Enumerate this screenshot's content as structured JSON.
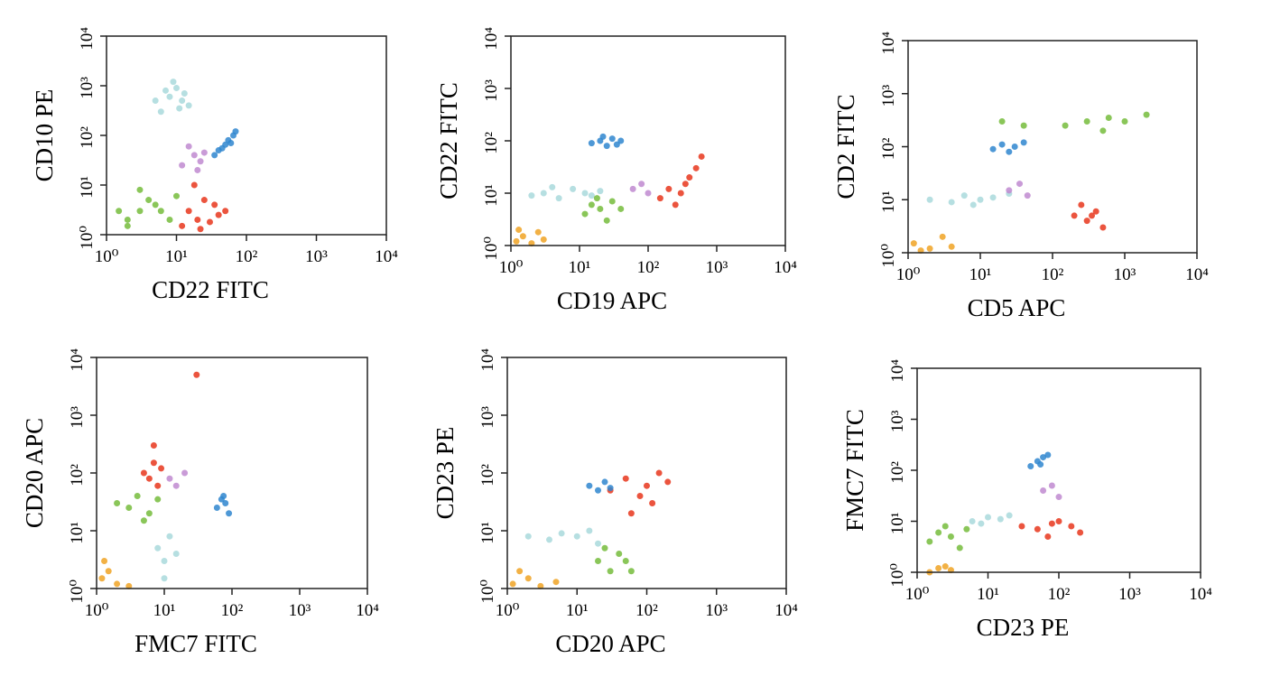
{
  "chart_data": [
    {
      "type": "scatter",
      "xlabel": "CD22 FITC",
      "ylabel": "CD10 PE",
      "log_x": true,
      "log_y": true,
      "xlim": [
        1,
        10000
      ],
      "ylim": [
        1,
        10000
      ],
      "xticks": [
        {
          "value": 1,
          "label": "10⁰"
        },
        {
          "value": 10,
          "label": "10¹"
        },
        {
          "value": 100,
          "label": "10²"
        },
        {
          "value": 1000,
          "label": "10³"
        },
        {
          "value": 10000,
          "label": "10⁴"
        }
      ],
      "yticks": [
        {
          "value": 1,
          "label": "10⁰"
        },
        {
          "value": 10,
          "label": "10¹"
        },
        {
          "value": 100,
          "label": "10²"
        },
        {
          "value": 1000,
          "label": "10³"
        },
        {
          "value": 10000,
          "label": "10⁴"
        }
      ],
      "series": [
        {
          "color": "#a9d9dc",
          "x": [
            6,
            8,
            10,
            12,
            15,
            9,
            7,
            11,
            5,
            13
          ],
          "values": [
            300,
            600,
            900,
            500,
            400,
            1200,
            800,
            350,
            500,
            700
          ]
        },
        {
          "color": "#2f86cf",
          "x": [
            35,
            45,
            55,
            65,
            40,
            50,
            70,
            60
          ],
          "values": [
            40,
            55,
            80,
            100,
            50,
            65,
            120,
            70
          ]
        },
        {
          "color": "#c08ad0",
          "x": [
            12,
            18,
            22,
            15,
            25,
            20
          ],
          "values": [
            25,
            40,
            30,
            60,
            45,
            20
          ]
        },
        {
          "color": "#76bc3c",
          "x": [
            2,
            3,
            4,
            6,
            8,
            3,
            5,
            2,
            10,
            1.5
          ],
          "values": [
            2,
            3,
            5,
            3,
            2,
            8,
            4,
            1.5,
            6,
            3
          ]
        },
        {
          "color": "#e8361c",
          "x": [
            12,
            15,
            20,
            25,
            30,
            40,
            18,
            50,
            22,
            35
          ],
          "values": [
            1.5,
            3,
            2,
            5,
            1.8,
            2.5,
            10,
            3,
            1.3,
            4
          ]
        }
      ]
    },
    {
      "type": "scatter",
      "xlabel": "CD19 APC",
      "ylabel": "CD22 FITC",
      "log_x": true,
      "log_y": true,
      "xlim": [
        1,
        10000
      ],
      "ylim": [
        1,
        10000
      ],
      "xticks": [
        {
          "value": 1,
          "label": "10⁰"
        },
        {
          "value": 10,
          "label": "10¹"
        },
        {
          "value": 100,
          "label": "10²"
        },
        {
          "value": 1000,
          "label": "10³"
        },
        {
          "value": 10000,
          "label": "10⁴"
        }
      ],
      "yticks": [
        {
          "value": 1,
          "label": "10⁰"
        },
        {
          "value": 10,
          "label": "10¹"
        },
        {
          "value": 100,
          "label": "10²"
        },
        {
          "value": 1000,
          "label": "10³"
        },
        {
          "value": 10000,
          "label": "10⁴"
        }
      ],
      "series": [
        {
          "color": "#f0a325",
          "x": [
            1.2,
            1.5,
            2,
            3,
            1.3,
            2.5
          ],
          "values": [
            1.2,
            1.5,
            1.1,
            1.3,
            2,
            1.8
          ]
        },
        {
          "color": "#a9d9dc",
          "x": [
            2,
            3,
            5,
            8,
            12,
            20,
            4,
            15
          ],
          "values": [
            9,
            10,
            8,
            12,
            10,
            11,
            13,
            9
          ]
        },
        {
          "color": "#2f86cf",
          "x": [
            15,
            20,
            25,
            30,
            40,
            22,
            35
          ],
          "values": [
            90,
            100,
            80,
            110,
            100,
            120,
            85
          ]
        },
        {
          "color": "#76bc3c",
          "x": [
            12,
            15,
            20,
            25,
            30,
            18,
            40
          ],
          "values": [
            4,
            6,
            5,
            3,
            7,
            8,
            5
          ]
        },
        {
          "color": "#c08ad0",
          "x": [
            60,
            80,
            100
          ],
          "values": [
            12,
            15,
            10
          ]
        },
        {
          "color": "#e8361c",
          "x": [
            150,
            200,
            300,
            400,
            500,
            250,
            350,
            600
          ],
          "values": [
            8,
            12,
            10,
            20,
            30,
            6,
            15,
            50
          ]
        }
      ]
    },
    {
      "type": "scatter",
      "xlabel": "CD5 APC",
      "ylabel": "CD2 FITC",
      "log_x": true,
      "log_y": true,
      "xlim": [
        1,
        10000
      ],
      "ylim": [
        1,
        10000
      ],
      "xticks": [
        {
          "value": 1,
          "label": "10⁰"
        },
        {
          "value": 10,
          "label": "10¹"
        },
        {
          "value": 100,
          "label": "10²"
        },
        {
          "value": 1000,
          "label": "10³"
        },
        {
          "value": 10000,
          "label": "10⁴"
        }
      ],
      "yticks": [
        {
          "value": 1,
          "label": "10⁰"
        },
        {
          "value": 10,
          "label": "10¹"
        },
        {
          "value": 100,
          "label": "10²"
        },
        {
          "value": 1000,
          "label": "10³"
        },
        {
          "value": 10000,
          "label": "10⁴"
        }
      ],
      "series": [
        {
          "color": "#f0a325",
          "x": [
            1.2,
            2,
            3,
            1.5,
            4
          ],
          "values": [
            1.5,
            1.2,
            2,
            1.1,
            1.3
          ]
        },
        {
          "color": "#a9d9dc",
          "x": [
            2,
            4,
            6,
            10,
            15,
            25,
            8
          ],
          "values": [
            10,
            9,
            12,
            10,
            11,
            13,
            8
          ]
        },
        {
          "color": "#2f86cf",
          "x": [
            15,
            20,
            30,
            40,
            25
          ],
          "values": [
            90,
            110,
            100,
            120,
            80
          ]
        },
        {
          "color": "#c08ad0",
          "x": [
            25,
            35,
            45
          ],
          "values": [
            15,
            20,
            12
          ]
        },
        {
          "color": "#76bc3c",
          "x": [
            20,
            40,
            150,
            300,
            600,
            1000,
            2000,
            500
          ],
          "values": [
            300,
            250,
            250,
            300,
            350,
            300,
            400,
            200
          ]
        },
        {
          "color": "#e8361c",
          "x": [
            200,
            300,
            400,
            250,
            500,
            350
          ],
          "values": [
            5,
            4,
            6,
            8,
            3,
            5
          ]
        }
      ]
    },
    {
      "type": "scatter",
      "xlabel": "FMC7 FITC",
      "ylabel": "CD20 APC",
      "log_x": true,
      "log_y": true,
      "xlim": [
        1,
        10000
      ],
      "ylim": [
        1,
        10000
      ],
      "xticks": [
        {
          "value": 1,
          "label": "10⁰"
        },
        {
          "value": 10,
          "label": "10¹"
        },
        {
          "value": 100,
          "label": "10²"
        },
        {
          "value": 1000,
          "label": "10³"
        },
        {
          "value": 10000,
          "label": "10⁴"
        }
      ],
      "yticks": [
        {
          "value": 1,
          "label": "10⁰"
        },
        {
          "value": 10,
          "label": "10¹"
        },
        {
          "value": 100,
          "label": "10²"
        },
        {
          "value": 1000,
          "label": "10³"
        },
        {
          "value": 10000,
          "label": "10⁴"
        }
      ],
      "series": [
        {
          "color": "#f0a325",
          "x": [
            1.2,
            1.5,
            2,
            3,
            1.3
          ],
          "values": [
            1.5,
            2,
            1.2,
            1.1,
            3
          ]
        },
        {
          "color": "#76bc3c",
          "x": [
            2,
            3,
            4,
            6,
            8,
            5
          ],
          "values": [
            30,
            25,
            40,
            20,
            35,
            15
          ]
        },
        {
          "color": "#e8361c",
          "x": [
            5,
            6,
            7,
            8,
            9,
            7,
            30
          ],
          "values": [
            100,
            80,
            150,
            60,
            120,
            300,
            5000
          ]
        },
        {
          "color": "#a9d9dc",
          "x": [
            8,
            10,
            12,
            15,
            10
          ],
          "values": [
            5,
            3,
            8,
            4,
            1.5
          ]
        },
        {
          "color": "#c08ad0",
          "x": [
            12,
            15,
            20
          ],
          "values": [
            80,
            60,
            100
          ]
        },
        {
          "color": "#2f86cf",
          "x": [
            60,
            70,
            80,
            90,
            75
          ],
          "values": [
            25,
            35,
            30,
            20,
            40
          ]
        }
      ]
    },
    {
      "type": "scatter",
      "xlabel": "CD20 APC",
      "ylabel": "CD23 PE",
      "log_x": true,
      "log_y": true,
      "xlim": [
        1,
        10000
      ],
      "ylim": [
        1,
        10000
      ],
      "xticks": [
        {
          "value": 1,
          "label": "10⁰"
        },
        {
          "value": 10,
          "label": "10¹"
        },
        {
          "value": 100,
          "label": "10²"
        },
        {
          "value": 1000,
          "label": "10³"
        },
        {
          "value": 10000,
          "label": "10⁴"
        }
      ],
      "yticks": [
        {
          "value": 1,
          "label": "10⁰"
        },
        {
          "value": 10,
          "label": "10¹"
        },
        {
          "value": 100,
          "label": "10²"
        },
        {
          "value": 1000,
          "label": "10³"
        },
        {
          "value": 10000,
          "label": "10⁴"
        }
      ],
      "series": [
        {
          "color": "#f0a325",
          "x": [
            1.2,
            2,
            3,
            5,
            1.5
          ],
          "values": [
            1.2,
            1.5,
            1.1,
            1.3,
            2
          ]
        },
        {
          "color": "#a9d9dc",
          "x": [
            2,
            4,
            6,
            10,
            15,
            20
          ],
          "values": [
            8,
            7,
            9,
            8,
            10,
            6
          ]
        },
        {
          "color": "#76bc3c",
          "x": [
            20,
            30,
            40,
            50,
            25,
            60
          ],
          "values": [
            3,
            2,
            4,
            3,
            5,
            2
          ]
        },
        {
          "color": "#e8361c",
          "x": [
            30,
            50,
            80,
            100,
            150,
            60,
            120,
            200
          ],
          "values": [
            50,
            80,
            40,
            60,
            100,
            20,
            30,
            70
          ]
        },
        {
          "color": "#2f86cf",
          "x": [
            15,
            20,
            25,
            30
          ],
          "values": [
            60,
            50,
            70,
            55
          ]
        }
      ]
    },
    {
      "type": "scatter",
      "xlabel": "CD23 PE",
      "ylabel": "FMC7 FITC",
      "log_x": true,
      "log_y": true,
      "xlim": [
        1,
        10000
      ],
      "ylim": [
        1,
        10000
      ],
      "xticks": [
        {
          "value": 1,
          "label": "10⁰"
        },
        {
          "value": 10,
          "label": "10¹"
        },
        {
          "value": 100,
          "label": "10²"
        },
        {
          "value": 1000,
          "label": "10³"
        },
        {
          "value": 10000,
          "label": "10⁴"
        }
      ],
      "yticks": [
        {
          "value": 1,
          "label": "10⁰"
        },
        {
          "value": 10,
          "label": "10¹"
        },
        {
          "value": 100,
          "label": "10²"
        },
        {
          "value": 1000,
          "label": "10³"
        },
        {
          "value": 10000,
          "label": "10⁴"
        }
      ],
      "series": [
        {
          "color": "#f0a325",
          "x": [
            1.5,
            2,
            3,
            2.5
          ],
          "values": [
            1,
            1.2,
            1.1,
            1.3
          ]
        },
        {
          "color": "#76bc3c",
          "x": [
            1.5,
            2,
            3,
            4,
            5,
            2.5
          ],
          "values": [
            4,
            6,
            5,
            3,
            7,
            8
          ]
        },
        {
          "color": "#a9d9dc",
          "x": [
            6,
            8,
            10,
            15,
            20
          ],
          "values": [
            10,
            9,
            12,
            11,
            13
          ]
        },
        {
          "color": "#2f86cf",
          "x": [
            40,
            50,
            60,
            70,
            55
          ],
          "values": [
            120,
            150,
            180,
            200,
            130
          ]
        },
        {
          "color": "#c08ad0",
          "x": [
            60,
            80,
            100
          ],
          "values": [
            40,
            50,
            30
          ]
        },
        {
          "color": "#e8361c",
          "x": [
            30,
            50,
            80,
            100,
            150,
            200,
            70
          ],
          "values": [
            8,
            7,
            9,
            10,
            8,
            6,
            5
          ]
        }
      ]
    }
  ]
}
